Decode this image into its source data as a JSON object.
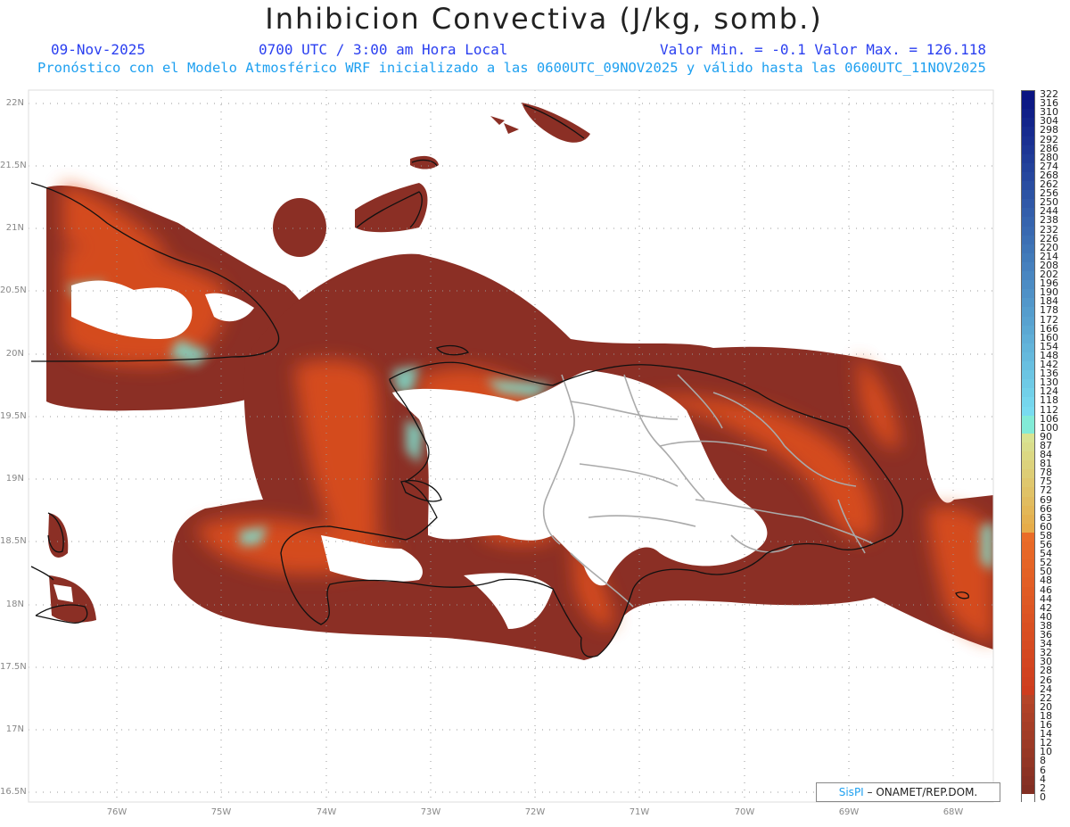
{
  "title": "Inhibicion Convectiva (J/kg, somb.)",
  "header": {
    "date": "09-Nov-2025",
    "time": "0700 UTC / 3:00 am Hora Local",
    "minmax": "Valor Min. = -0.1  Valor Max. = 126.118",
    "forecast": "Pronóstico con el Modelo Atmosférico WRF inicializado a las 0600UTC_09NOV2025 y válido hasta las  0600UTC_11NOV2025"
  },
  "axes": {
    "lat_labels": [
      "22N",
      "21.5N",
      "21N",
      "20.5N",
      "20N",
      "19.5N",
      "19N",
      "18.5N",
      "18N",
      "17.5N",
      "17N",
      "16.5N"
    ],
    "lon_labels": [
      "76W",
      "75W",
      "74W",
      "73W",
      "72W",
      "71W",
      "70W",
      "69W",
      "68W"
    ]
  },
  "colorbar": {
    "labels": [
      "322",
      "316",
      "310",
      "304",
      "298",
      "292",
      "286",
      "280",
      "274",
      "268",
      "262",
      "256",
      "250",
      "244",
      "238",
      "232",
      "226",
      "220",
      "214",
      "208",
      "202",
      "196",
      "190",
      "184",
      "178",
      "172",
      "166",
      "160",
      "154",
      "148",
      "142",
      "136",
      "130",
      "124",
      "118",
      "112",
      "106",
      "100",
      "90",
      "87",
      "84",
      "81",
      "78",
      "75",
      "72",
      "69",
      "66",
      "63",
      "60",
      "58",
      "56",
      "54",
      "52",
      "50",
      "48",
      "46",
      "44",
      "42",
      "40",
      "38",
      "36",
      "34",
      "32",
      "30",
      "28",
      "26",
      "24",
      "22",
      "20",
      "18",
      "16",
      "14",
      "12",
      "10",
      "8",
      "6",
      "4",
      "2",
      "0"
    ]
  },
  "credit": {
    "brand": "SisPI",
    "text": " – ONAMET/REP.DOM."
  },
  "colors": {
    "field_low": "#8b2f25",
    "field_mid": "#e9521a",
    "field_high": "#7fe0cf",
    "coastline": "#111111",
    "provinces": "#aaaaaa",
    "header_blue": "#2a3ff0",
    "header_cyan": "#1ea0f0"
  }
}
